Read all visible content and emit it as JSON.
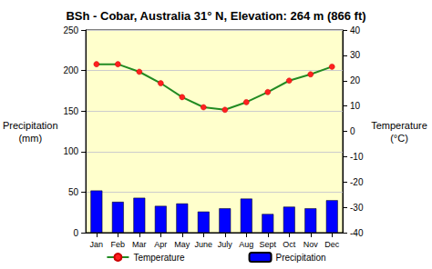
{
  "chart_data": {
    "type": "bar",
    "title": "BSh - Cobar, Australia 31° N, Elevation: 264 m (866 ft)",
    "ylabel": "Precipitation\n(mm)",
    "y2label": "Temperature\n(°C)",
    "categories": [
      "Jan",
      "Feb",
      "Mar",
      "Apr",
      "May",
      "June",
      "July",
      "Aug",
      "Sept",
      "Oct",
      "Nov",
      "Dec"
    ],
    "series": [
      {
        "name": "Temperature",
        "type": "line",
        "axis": "y2",
        "color": "#228b22",
        "marker": "circle",
        "values": [
          26.5,
          26.5,
          23.5,
          19,
          13.5,
          9.5,
          8.5,
          11.5,
          15.5,
          20,
          22.5,
          25.5
        ]
      },
      {
        "name": "Precipitation",
        "type": "bar",
        "color": "#0000ff",
        "values": [
          52,
          38,
          43,
          33,
          36,
          26,
          30,
          42,
          23,
          32,
          30,
          40
        ]
      }
    ],
    "ylim": [
      0,
      250
    ],
    "yticks": [
      0,
      50,
      100,
      150,
      200,
      250
    ],
    "y2lim": [
      -40,
      40
    ],
    "y2ticks": [
      -40,
      -30,
      -20,
      -10,
      0,
      10,
      20,
      30,
      40
    ],
    "grid": true,
    "legend": "bottom"
  }
}
